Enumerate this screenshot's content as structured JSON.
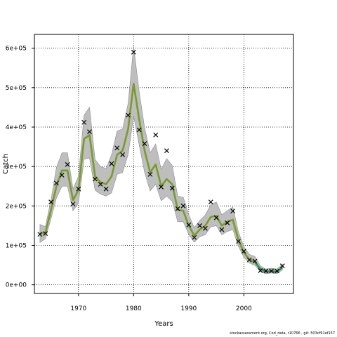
{
  "chart_data": {
    "type": "line",
    "xlabel": "Years",
    "ylabel": "Catch",
    "xlim": [
      1962,
      2009
    ],
    "ylim": [
      -22000,
      635000
    ],
    "xticks": [
      1970,
      1980,
      1990,
      2000
    ],
    "yticks": [
      0,
      100000,
      200000,
      300000,
      400000,
      500000,
      600000
    ],
    "ytick_labels": [
      "0e+00",
      "1e+05",
      "2e+05",
      "3e+05",
      "4e+05",
      "5e+05",
      "6e+05"
    ],
    "grid": true,
    "colors": {
      "band": "#bebebe",
      "band_edge": "#8c8c8c",
      "fit_line": "#7a9a2a",
      "fit_line_late": "#2e8b57",
      "observed": "#000000"
    },
    "years": [
      1963,
      1964,
      1965,
      1966,
      1967,
      1968,
      1969,
      1970,
      1971,
      1972,
      1973,
      1974,
      1975,
      1976,
      1977,
      1978,
      1979,
      1980,
      1981,
      1982,
      1983,
      1984,
      1985,
      1986,
      1987,
      1988,
      1989,
      1990,
      1991,
      1992,
      1993,
      1994,
      1995,
      1996,
      1997,
      1998,
      1999,
      2000,
      2001,
      2002,
      2003,
      2004,
      2005,
      2006,
      2007
    ],
    "observed": [
      128000,
      130000,
      210000,
      258000,
      278000,
      305000,
      205000,
      243000,
      412000,
      388000,
      268000,
      255000,
      243000,
      307000,
      347000,
      330000,
      430000,
      590000,
      393000,
      358000,
      280000,
      380000,
      248000,
      340000,
      245000,
      193000,
      200000,
      152000,
      120000,
      150000,
      143000,
      210000,
      170000,
      140000,
      157000,
      187000,
      110000,
      85000,
      63000,
      60000,
      36000,
      35000,
      35000,
      35000,
      48000
    ],
    "fit": [
      130000,
      132000,
      190000,
      250000,
      290000,
      290000,
      215000,
      240000,
      370000,
      380000,
      275000,
      260000,
      255000,
      275000,
      330000,
      340000,
      395000,
      510000,
      420000,
      340000,
      285000,
      305000,
      250000,
      268000,
      255000,
      190000,
      188000,
      150000,
      125000,
      140000,
      150000,
      172000,
      175000,
      150000,
      160000,
      165000,
      115000,
      82000,
      64000,
      58000,
      40000,
      33000,
      35000,
      33000,
      44000
    ],
    "lower": [
      107000,
      117000,
      167000,
      220000,
      250000,
      250000,
      188000,
      207000,
      318000,
      322000,
      240000,
      230000,
      225000,
      233000,
      280000,
      285000,
      330000,
      428000,
      355000,
      285000,
      238000,
      255000,
      213000,
      225000,
      212000,
      160000,
      160000,
      128000,
      108000,
      122000,
      127000,
      147000,
      150000,
      127000,
      135000,
      140000,
      98000,
      70000,
      55000,
      49000,
      34000,
      28000,
      30000,
      28000,
      38000
    ],
    "upper": [
      153000,
      148000,
      215000,
      298000,
      335000,
      335000,
      243000,
      275000,
      430000,
      450000,
      318000,
      300000,
      295000,
      330000,
      390000,
      395000,
      460000,
      605000,
      490000,
      398000,
      335000,
      357000,
      293000,
      320000,
      303000,
      225000,
      222000,
      178000,
      145000,
      163000,
      177000,
      203000,
      210000,
      178000,
      188000,
      197000,
      135000,
      97000,
      77000,
      72000,
      48000,
      40000,
      42000,
      40000,
      52000
    ],
    "footnote": "stockassessment.org, Cod_data, r10766 , git: 503cf91af157"
  }
}
